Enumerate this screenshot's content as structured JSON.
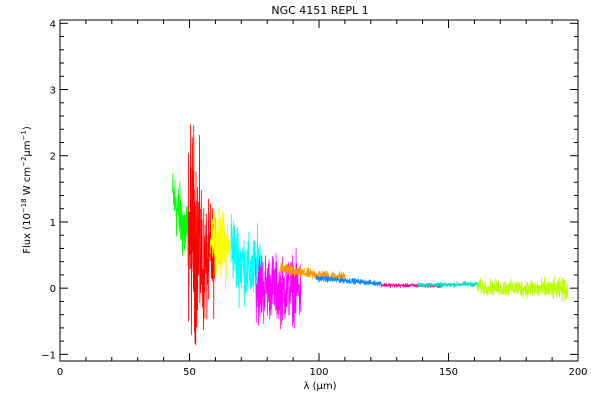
{
  "chart_data": {
    "type": "line",
    "title": "NGC 4151  REPL 1",
    "xlabel": "λ (μm)",
    "ylabel": {
      "prefix": "Flux (10",
      "exp1": "−18",
      "mid1": " W cm",
      "exp2": "−2",
      "mid2": "μm",
      "exp3": "−1",
      "suffix": ")"
    },
    "xlim": [
      0,
      200
    ],
    "ylim": [
      -1.1,
      4.05
    ],
    "xticks": [
      0,
      50,
      100,
      150,
      200
    ],
    "yticks": [
      -1,
      0,
      1,
      2,
      3,
      4
    ],
    "xticklabels": [
      "0",
      "50",
      "100",
      "150",
      "200"
    ],
    "yticklabels": [
      "−1",
      "0",
      "1",
      "2",
      "3",
      "4"
    ],
    "grid": false,
    "legend": "none",
    "series": [
      {
        "color": "#00ff00",
        "x": [
          43.5,
          44.5,
          45.5,
          46.5,
          47.5,
          48.5,
          49.5
        ],
        "y": [
          1.4,
          1.3,
          1.15,
          1.05,
          0.95,
          0.85,
          0.8
        ],
        "noise": [
          0.25,
          0.3,
          0.3,
          0.3,
          0.35,
          0.35,
          0.3
        ]
      },
      {
        "color": "#ff0000",
        "x": [
          49.5,
          51,
          52.5,
          54,
          55.5,
          57,
          58.5,
          60
        ],
        "y": [
          0.85,
          0.9,
          0.8,
          0.55,
          0.3,
          0.35,
          0.5,
          0.3
        ],
        "noise": [
          0.8,
          1.0,
          0.9,
          0.8,
          0.6,
          0.5,
          0.5,
          0.4
        ]
      },
      {
        "color": "#ffff00",
        "x": [
          58,
          59.5,
          61,
          62.5,
          64,
          65.5
        ],
        "y": [
          0.85,
          0.8,
          0.7,
          0.65,
          0.6,
          0.6
        ],
        "noise": [
          0.2,
          0.3,
          0.3,
          0.3,
          0.35,
          0.25
        ]
      },
      {
        "color": "#00ffff",
        "x": [
          66,
          68,
          70,
          72,
          74,
          76,
          78
        ],
        "y": [
          0.75,
          0.45,
          0.4,
          0.3,
          0.25,
          0.3,
          0.35
        ],
        "noise": [
          0.3,
          0.35,
          0.35,
          0.3,
          0.3,
          0.35,
          0.3
        ]
      },
      {
        "color": "#ff00ff",
        "x": [
          75.5,
          78,
          80.5,
          83,
          85.5,
          88,
          90.5,
          93
        ],
        "y": [
          0.05,
          0.0,
          0.05,
          0.0,
          -0.05,
          0.0,
          0.0,
          -0.05
        ],
        "noise": [
          0.35,
          0.35,
          0.3,
          0.3,
          0.3,
          0.3,
          0.3,
          0.3
        ]
      },
      {
        "color": "#ff9900",
        "x": [
          85,
          90,
          95,
          100,
          105,
          110
        ],
        "y": [
          0.3,
          0.25,
          0.22,
          0.2,
          0.18,
          0.18
        ],
        "noise": [
          0.07,
          0.06,
          0.05,
          0.05,
          0.05,
          0.04
        ]
      },
      {
        "color": "#0088ff",
        "x": [
          99,
          105,
          110,
          115,
          120,
          124
        ],
        "y": [
          0.15,
          0.13,
          0.12,
          0.1,
          0.08,
          0.07
        ],
        "noise": [
          0.03,
          0.03,
          0.03,
          0.025,
          0.025,
          0.025
        ]
      },
      {
        "color": "#ff0099",
        "x": [
          124,
          130,
          136,
          142,
          148
        ],
        "y": [
          0.05,
          0.04,
          0.04,
          0.04,
          0.035
        ],
        "noise": [
          0.02,
          0.02,
          0.02,
          0.02,
          0.02
        ]
      },
      {
        "color": "#00e5c0",
        "x": [
          138,
          144,
          150,
          156,
          162
        ],
        "y": [
          0.05,
          0.05,
          0.05,
          0.06,
          0.06
        ],
        "noise": [
          0.02,
          0.02,
          0.02,
          0.025,
          0.025
        ]
      },
      {
        "color": "#bbff00",
        "x": [
          161,
          166,
          171,
          176,
          181,
          186,
          191,
          196
        ],
        "y": [
          0.02,
          0.01,
          0.0,
          0.0,
          0.0,
          -0.01,
          -0.02,
          -0.02
        ],
        "noise": [
          0.07,
          0.07,
          0.08,
          0.08,
          0.09,
          0.1,
          0.1,
          0.11
        ]
      }
    ]
  }
}
